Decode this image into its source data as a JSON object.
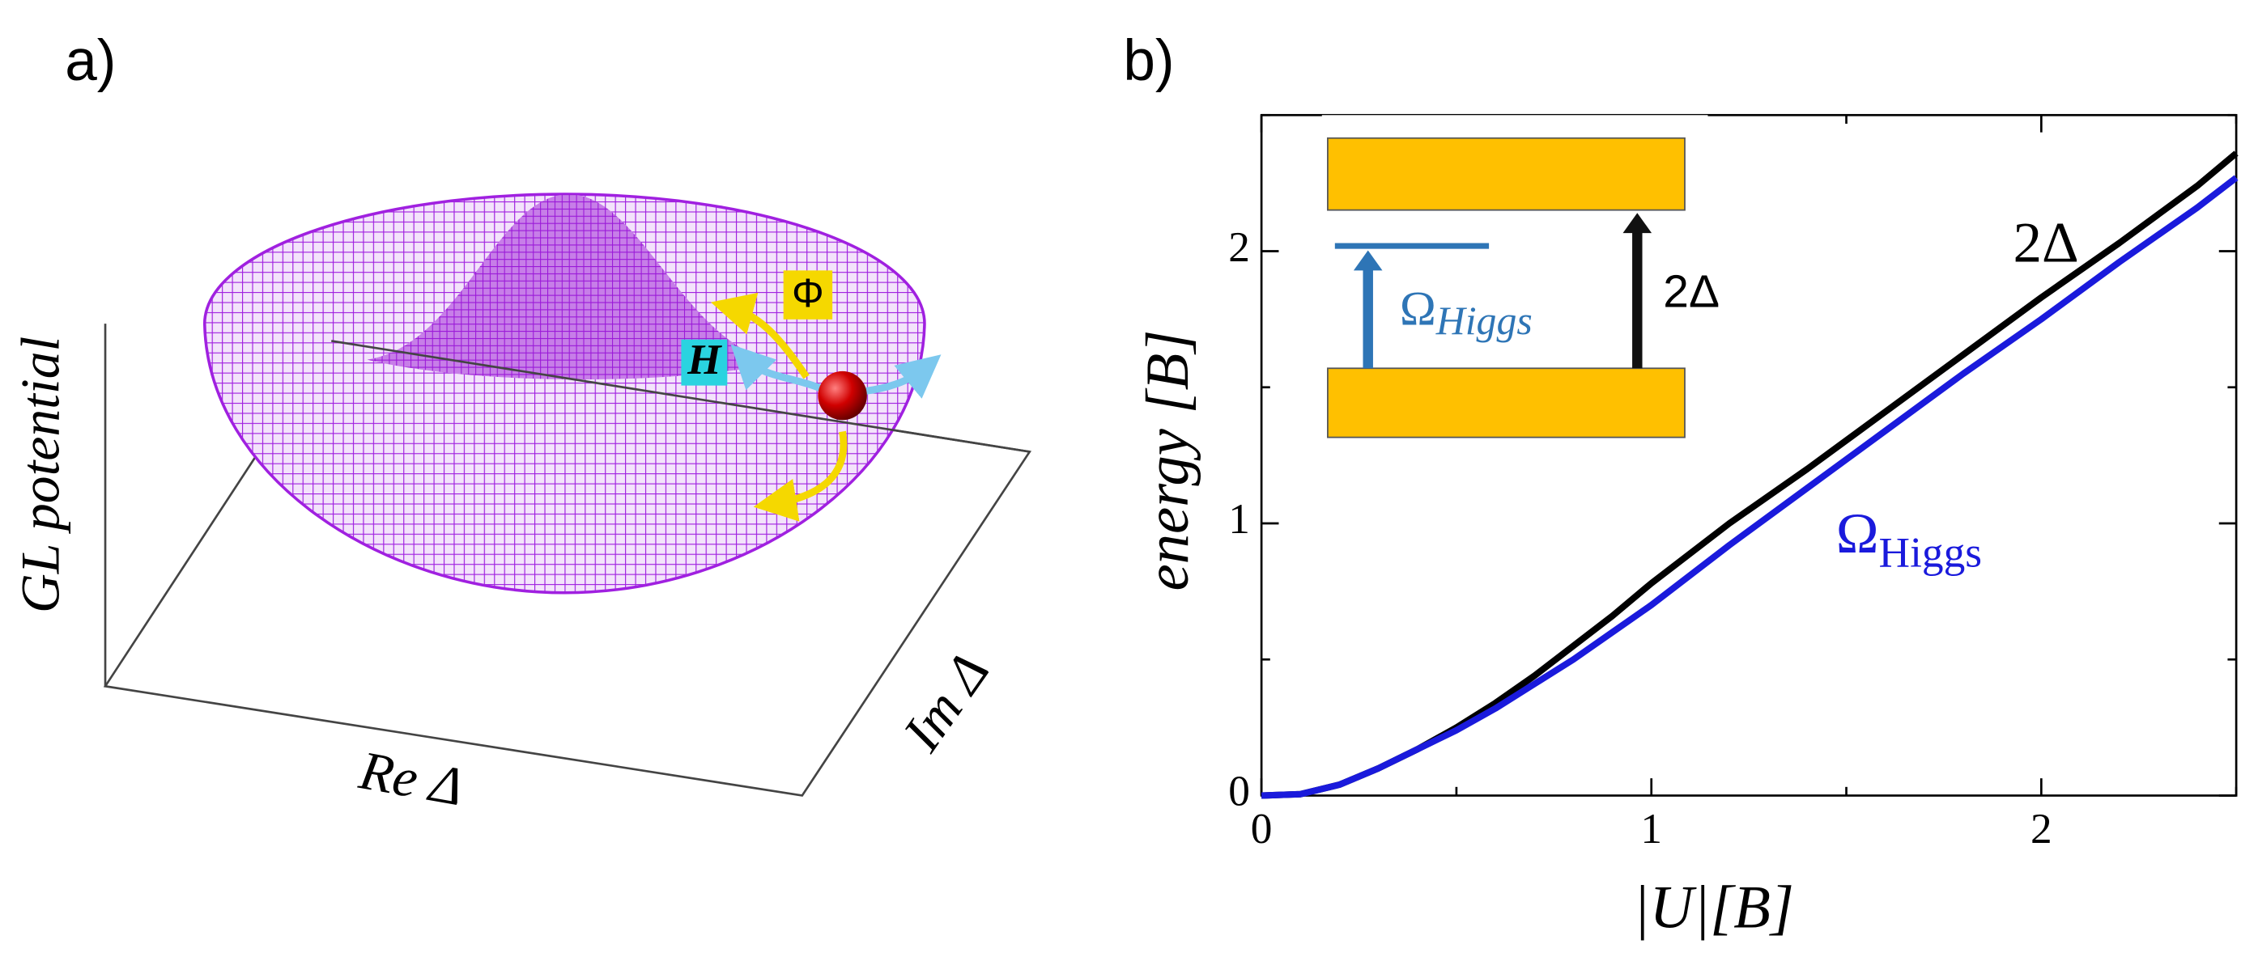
{
  "panel_a": {
    "label": "a)",
    "z_label": "GL potential",
    "x_label": "Re Δ",
    "y_label": "Im Δ",
    "phase_label": "Φ",
    "higgs_label": "H"
  },
  "chart_data": {
    "type": "line",
    "panel_label": "b)",
    "x_label": "|U|[B]",
    "y_label": "energy [B]",
    "xlim": [
      0,
      2.5
    ],
    "ylim": [
      0,
      2.5
    ],
    "xticks": [
      0,
      1,
      2
    ],
    "yticks": [
      0,
      1,
      2
    ],
    "xticks_minor": [
      0.5,
      1.5,
      2.5
    ],
    "yticks_minor": [
      0.5,
      1.5,
      2.5
    ],
    "x": [
      0,
      0.1,
      0.2,
      0.3,
      0.4,
      0.5,
      0.6,
      0.7,
      0.8,
      0.9,
      1.0,
      1.2,
      1.4,
      1.6,
      1.8,
      2.0,
      2.2,
      2.4,
      2.5
    ],
    "series": [
      {
        "name": "2Δ",
        "color": "#000000",
        "values": [
          0,
          0.005,
          0.04,
          0.1,
          0.17,
          0.25,
          0.34,
          0.44,
          0.55,
          0.66,
          0.78,
          1.0,
          1.2,
          1.41,
          1.62,
          1.83,
          2.03,
          2.24,
          2.36
        ]
      },
      {
        "name": "Ω",
        "name_subscript": "Higgs",
        "color": "#1a1adc",
        "values": [
          0,
          0.005,
          0.04,
          0.1,
          0.17,
          0.24,
          0.32,
          0.41,
          0.5,
          0.6,
          0.7,
          0.92,
          1.13,
          1.34,
          1.55,
          1.75,
          1.96,
          2.16,
          2.27
        ]
      }
    ],
    "inset": {
      "gap_label": "2Δ",
      "mode_label": "Ω",
      "mode_subscript": "Higgs"
    }
  }
}
